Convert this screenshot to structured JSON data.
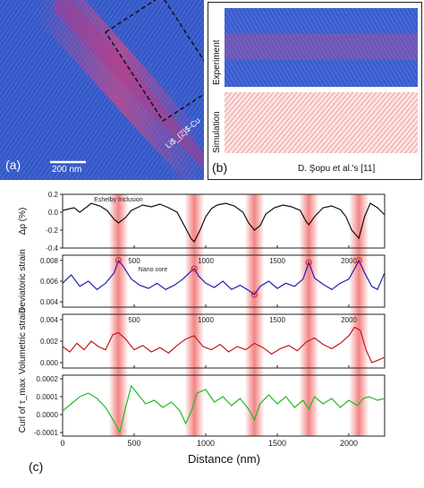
{
  "panel_a": {
    "label": "(a)",
    "scalebar": "200 nm",
    "vertical_label": "Li$_{2}$-Cu",
    "colors": {
      "matrix": "#3558c8",
      "band": "#c84a8a"
    }
  },
  "panel_b": {
    "label": "(b)",
    "experiment_label": "Experiment",
    "simulation_label": "Simulation",
    "citation": "D. Şopu et al.'s [11]"
  },
  "panel_c": {
    "label": "(c)",
    "xlabel": "Distance (nm)",
    "x_ticks": [
      "500",
      "1000",
      "1500",
      "2000"
    ],
    "x_tick_values": [
      500,
      1000,
      1500,
      2000
    ],
    "x_extra_tick": "0",
    "highlight_centers": [
      390,
      920,
      1340,
      1720,
      2070
    ],
    "highlight_color": "#ef5a5a"
  },
  "chart_data": [
    {
      "type": "line",
      "ylabel": "Δρ (%)",
      "ylim": [
        -0.4,
        0.2
      ],
      "y_ticks": [
        "0.2",
        "0.0",
        "-0.2",
        "-0.4"
      ],
      "color": "#111111",
      "annotation": "Eshelby Inclusion",
      "x": [
        0,
        80,
        120,
        170,
        200,
        260,
        310,
        360,
        390,
        440,
        480,
        520,
        560,
        620,
        680,
        740,
        800,
        860,
        900,
        920,
        960,
        1000,
        1040,
        1080,
        1140,
        1200,
        1260,
        1300,
        1340,
        1380,
        1420,
        1480,
        1540,
        1600,
        1660,
        1700,
        1720,
        1760,
        1820,
        1880,
        1940,
        1980,
        2020,
        2070,
        2110,
        2150,
        2200,
        2250
      ],
      "y": [
        0.02,
        0.05,
        0.0,
        0.06,
        0.1,
        0.07,
        0.02,
        -0.08,
        -0.12,
        -0.06,
        0.02,
        0.05,
        0.08,
        0.06,
        0.09,
        0.05,
        0.0,
        -0.18,
        -0.3,
        -0.33,
        -0.2,
        -0.05,
        0.04,
        0.08,
        0.1,
        0.07,
        0.0,
        -0.12,
        -0.2,
        -0.15,
        -0.02,
        0.05,
        0.08,
        0.06,
        0.02,
        -0.1,
        -0.14,
        -0.05,
        0.05,
        0.07,
        0.03,
        -0.05,
        -0.2,
        -0.29,
        -0.05,
        0.1,
        0.05,
        -0.03
      ],
      "x_tick_labels_shown": false
    },
    {
      "type": "line",
      "ylabel": "Deviatoric strain",
      "ylim": [
        0.0035,
        0.0085
      ],
      "y_ticks": [
        "0.008",
        "0.006",
        "0.004"
      ],
      "color": "#1f1fb4",
      "annotation": "Nano core",
      "marker_x": [
        390,
        920,
        1340,
        1720,
        2070
      ],
      "marker_y": [
        0.008,
        0.0072,
        0.0047,
        0.0078,
        0.008
      ],
      "x": [
        0,
        60,
        120,
        180,
        240,
        300,
        360,
        390,
        420,
        480,
        540,
        600,
        660,
        720,
        780,
        840,
        900,
        920,
        950,
        1000,
        1060,
        1120,
        1180,
        1240,
        1300,
        1340,
        1380,
        1440,
        1500,
        1560,
        1620,
        1680,
        1720,
        1760,
        1820,
        1880,
        1940,
        2000,
        2040,
        2070,
        2110,
        2160,
        2200,
        2250
      ],
      "y": [
        0.0058,
        0.0066,
        0.0055,
        0.006,
        0.0052,
        0.0058,
        0.0068,
        0.008,
        0.0075,
        0.0062,
        0.0056,
        0.0053,
        0.0058,
        0.0052,
        0.0056,
        0.0062,
        0.007,
        0.0072,
        0.0065,
        0.0058,
        0.0054,
        0.006,
        0.0052,
        0.0056,
        0.0051,
        0.0047,
        0.0055,
        0.006,
        0.0053,
        0.0058,
        0.0055,
        0.0062,
        0.0078,
        0.0063,
        0.0057,
        0.0052,
        0.0058,
        0.0062,
        0.0072,
        0.008,
        0.0068,
        0.0055,
        0.0052,
        0.0068
      ],
      "x_tick_labels_shown": true
    },
    {
      "type": "line",
      "ylabel": "Volumetric strain",
      "ylim": [
        -0.0005,
        0.0045
      ],
      "y_ticks": [
        "0.004",
        "0.002",
        "0.000"
      ],
      "color": "#c01818",
      "x": [
        0,
        50,
        100,
        150,
        200,
        250,
        300,
        350,
        390,
        440,
        500,
        560,
        620,
        680,
        740,
        800,
        860,
        920,
        980,
        1040,
        1100,
        1160,
        1220,
        1280,
        1340,
        1400,
        1460,
        1520,
        1580,
        1640,
        1700,
        1760,
        1820,
        1880,
        1940,
        2000,
        2040,
        2080,
        2120,
        2160,
        2200,
        2250
      ],
      "y": [
        0.0015,
        0.001,
        0.0018,
        0.0012,
        0.002,
        0.0015,
        0.0012,
        0.0026,
        0.0028,
        0.0022,
        0.0012,
        0.0016,
        0.001,
        0.0014,
        0.0009,
        0.0016,
        0.0022,
        0.0025,
        0.0015,
        0.0012,
        0.0017,
        0.001,
        0.0015,
        0.0012,
        0.0018,
        0.0014,
        0.0008,
        0.0013,
        0.0016,
        0.0011,
        0.0019,
        0.0023,
        0.0017,
        0.0013,
        0.0018,
        0.0025,
        0.0033,
        0.003,
        0.0012,
        0.0,
        0.0002,
        0.0005
      ],
      "x_tick_labels_shown": true
    },
    {
      "type": "line",
      "ylabel": "Curl of τ_max",
      "ylim": [
        -0.00012,
        0.00022
      ],
      "y_ticks": [
        "0.0002",
        "0.0001",
        "0.0000",
        "-0.0001"
      ],
      "color": "#22bb22",
      "x": [
        0,
        60,
        120,
        180,
        240,
        300,
        360,
        400,
        440,
        480,
        520,
        580,
        640,
        700,
        760,
        820,
        860,
        900,
        940,
        1000,
        1060,
        1120,
        1180,
        1240,
        1300,
        1340,
        1380,
        1440,
        1500,
        1560,
        1620,
        1680,
        1720,
        1760,
        1820,
        1880,
        1940,
        2000,
        2060,
        2100,
        2140,
        2200,
        2250
      ],
      "y": [
        2e-05,
        6e-05,
        0.0001,
        0.00012,
        9e-05,
        4e-05,
        -4e-05,
        -0.0001,
        4e-05,
        0.00016,
        0.00012,
        6e-05,
        8e-05,
        4e-05,
        7e-05,
        2e-05,
        -5e-05,
        2e-05,
        0.00012,
        0.00014,
        7e-05,
        0.0001,
        5e-05,
        9e-05,
        3e-05,
        -3e-05,
        6e-05,
        0.00011,
        6e-05,
        0.0001,
        4e-05,
        8e-05,
        3e-05,
        0.0001,
        6e-05,
        9e-05,
        4e-05,
        8e-05,
        5e-05,
        9e-05,
        0.0001,
        8e-05,
        9e-05
      ],
      "x_tick_labels_shown": true
    }
  ]
}
